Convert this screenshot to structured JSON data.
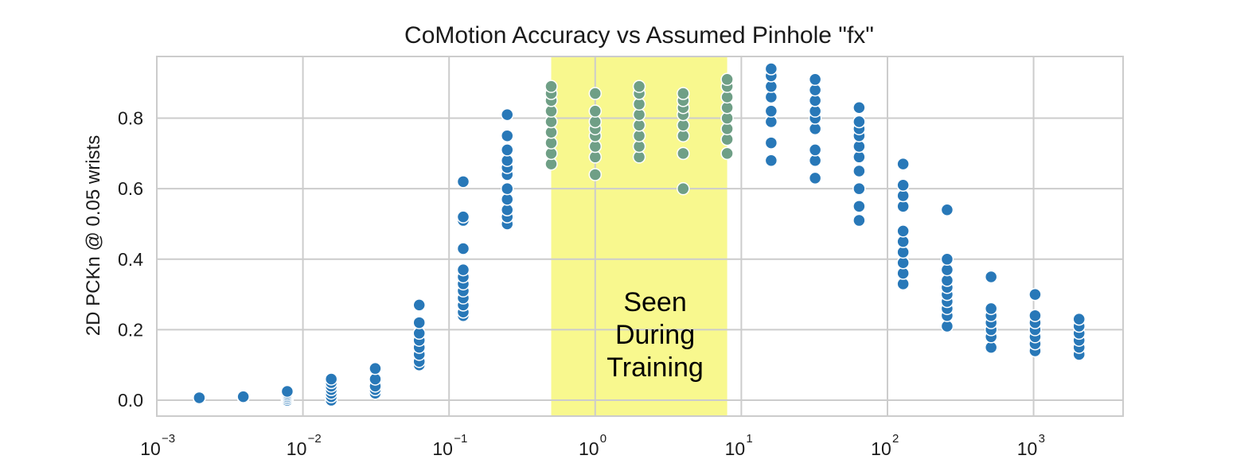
{
  "chart_data": {
    "type": "scatter",
    "title": "CoMotion Accuracy vs Assumed Pinhole \"fx\"",
    "xlabel": "",
    "ylabel": "2D PCKn @ 0.05 wrists",
    "xscale": "log",
    "xlim": [
      0.001,
      4096
    ],
    "ylim": [
      -0.045,
      0.975
    ],
    "xticks": [
      {
        "value": 0.001,
        "base": "10",
        "exp": "−3"
      },
      {
        "value": 0.01,
        "base": "10",
        "exp": "−2"
      },
      {
        "value": 0.1,
        "base": "10",
        "exp": "−1"
      },
      {
        "value": 1,
        "base": "10",
        "exp": "0"
      },
      {
        "value": 10,
        "base": "10",
        "exp": "1"
      },
      {
        "value": 100,
        "base": "10",
        "exp": "2"
      },
      {
        "value": 1000,
        "base": "10",
        "exp": "3"
      }
    ],
    "yticks": [
      "0.0",
      "0.2",
      "0.4",
      "0.6",
      "0.8"
    ],
    "grid": true,
    "highlight_region": {
      "x_start": 0.5,
      "x_end": 8,
      "label_lines": [
        "Seen",
        "During",
        "Training"
      ],
      "color": "#f7f77a"
    },
    "colors": {
      "outside": "#2878b8",
      "inside": "#6f9f86"
    },
    "series": [
      {
        "x": 0.001953125,
        "values": [
          0.005,
          0.007
        ]
      },
      {
        "x": 0.00390625,
        "values": [
          0.008,
          0.01
        ]
      },
      {
        "x": 0.0078125,
        "values": [
          0.0,
          0.005,
          0.01,
          0.015,
          0.02,
          0.025
        ]
      },
      {
        "x": 0.015625,
        "values": [
          0.0,
          0.01,
          0.02,
          0.03,
          0.04,
          0.05,
          0.06
        ]
      },
      {
        "x": 0.03125,
        "values": [
          0.02,
          0.03,
          0.04,
          0.06,
          0.09
        ]
      },
      {
        "x": 0.0625,
        "values": [
          0.1,
          0.11,
          0.13,
          0.15,
          0.17,
          0.19,
          0.22,
          0.27
        ]
      },
      {
        "x": 0.125,
        "values": [
          0.24,
          0.25,
          0.27,
          0.29,
          0.31,
          0.33,
          0.35,
          0.37,
          0.43,
          0.51,
          0.52,
          0.62
        ]
      },
      {
        "x": 0.25,
        "values": [
          0.5,
          0.52,
          0.54,
          0.57,
          0.6,
          0.64,
          0.66,
          0.68,
          0.71,
          0.75,
          0.81
        ]
      },
      {
        "x": 0.5,
        "values": [
          0.67,
          0.7,
          0.73,
          0.76,
          0.79,
          0.82,
          0.85,
          0.87,
          0.89
        ]
      },
      {
        "x": 1,
        "values": [
          0.64,
          0.69,
          0.72,
          0.75,
          0.77,
          0.79,
          0.82,
          0.87
        ]
      },
      {
        "x": 2,
        "values": [
          0.69,
          0.72,
          0.75,
          0.78,
          0.81,
          0.84,
          0.87,
          0.89
        ]
      },
      {
        "x": 4,
        "values": [
          0.6,
          0.7,
          0.75,
          0.78,
          0.81,
          0.83,
          0.85,
          0.87
        ]
      },
      {
        "x": 8,
        "values": [
          0.7,
          0.74,
          0.77,
          0.8,
          0.83,
          0.86,
          0.89,
          0.91
        ]
      },
      {
        "x": 16,
        "values": [
          0.68,
          0.73,
          0.79,
          0.82,
          0.86,
          0.89,
          0.92,
          0.94
        ]
      },
      {
        "x": 32,
        "values": [
          0.63,
          0.68,
          0.71,
          0.77,
          0.8,
          0.82,
          0.85,
          0.88,
          0.91
        ]
      },
      {
        "x": 64,
        "values": [
          0.51,
          0.55,
          0.6,
          0.65,
          0.69,
          0.72,
          0.75,
          0.77,
          0.79,
          0.83
        ]
      },
      {
        "x": 128,
        "values": [
          0.33,
          0.36,
          0.39,
          0.42,
          0.45,
          0.48,
          0.55,
          0.58,
          0.61,
          0.67
        ]
      },
      {
        "x": 256,
        "values": [
          0.21,
          0.24,
          0.26,
          0.28,
          0.3,
          0.32,
          0.34,
          0.37,
          0.4,
          0.54
        ]
      },
      {
        "x": 512,
        "values": [
          0.15,
          0.18,
          0.2,
          0.22,
          0.24,
          0.26,
          0.35
        ]
      },
      {
        "x": 1024,
        "values": [
          0.14,
          0.16,
          0.18,
          0.2,
          0.22,
          0.24,
          0.3
        ]
      },
      {
        "x": 2048,
        "values": [
          0.13,
          0.15,
          0.17,
          0.19,
          0.21,
          0.23
        ]
      }
    ]
  }
}
